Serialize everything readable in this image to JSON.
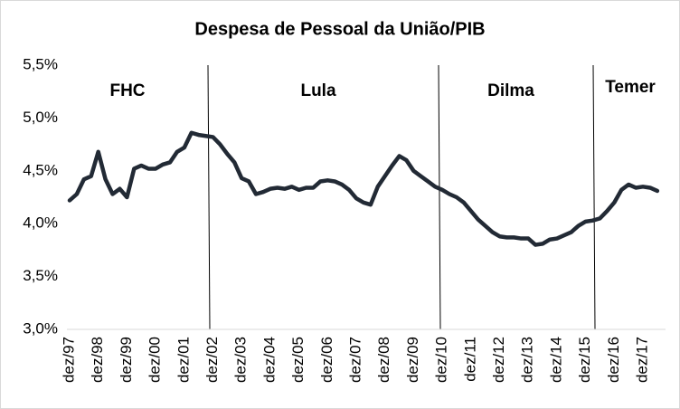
{
  "chart_data": {
    "type": "line",
    "title": "Despesa de Pessoal da União/PIB",
    "categories": [
      "dez/97",
      null,
      null,
      null,
      "dez/98",
      null,
      null,
      null,
      "dez/99",
      null,
      null,
      null,
      "dez/00",
      null,
      null,
      null,
      "dez/01",
      null,
      null,
      null,
      "dez/02",
      null,
      null,
      null,
      "dez/03",
      null,
      null,
      null,
      "dez/04",
      null,
      null,
      null,
      "dez/05",
      null,
      null,
      null,
      "dez/06",
      null,
      null,
      null,
      "dez/07",
      null,
      null,
      null,
      "dez/08",
      null,
      null,
      null,
      "dez/09",
      null,
      null,
      null,
      "dez/10",
      null,
      null,
      null,
      "dez/11",
      null,
      null,
      null,
      "dez/12",
      null,
      null,
      null,
      "dez/13",
      null,
      null,
      null,
      "dez/14",
      null,
      null,
      null,
      "dez/15",
      null,
      null,
      null,
      "dez/16",
      null,
      null,
      null,
      "dez/17",
      null,
      null
    ],
    "series": [
      {
        "name": "Despesa de Pessoal da União/PIB",
        "color": "#222a35",
        "values": [
          4.22,
          4.28,
          4.42,
          4.45,
          4.68,
          4.42,
          4.28,
          4.33,
          4.25,
          4.52,
          4.55,
          4.52,
          4.52,
          4.56,
          4.58,
          4.68,
          4.72,
          4.86,
          4.84,
          4.83,
          4.82,
          4.75,
          4.66,
          4.58,
          4.43,
          4.4,
          4.28,
          4.3,
          4.33,
          4.34,
          4.33,
          4.35,
          4.32,
          4.34,
          4.34,
          4.4,
          4.41,
          4.4,
          4.37,
          4.32,
          4.24,
          4.2,
          4.18,
          4.35,
          4.45,
          4.55,
          4.64,
          4.6,
          4.5,
          4.45,
          4.4,
          4.35,
          4.32,
          4.28,
          4.25,
          4.2,
          4.12,
          4.04,
          3.98,
          3.92,
          3.88,
          3.87,
          3.87,
          3.86,
          3.86,
          3.8,
          3.81,
          3.85,
          3.86,
          3.89,
          3.92,
          3.98,
          4.02,
          4.03,
          4.05,
          4.12,
          4.2,
          4.32,
          4.37,
          4.34,
          4.35,
          4.34,
          4.31
        ]
      }
    ],
    "ylim": [
      3.0,
      5.5
    ],
    "yticks": [
      {
        "value": 3.0,
        "label": "3,0%"
      },
      {
        "value": 3.5,
        "label": "3,5%"
      },
      {
        "value": 4.0,
        "label": "4,0%"
      },
      {
        "value": 4.5,
        "label": "4,5%"
      },
      {
        "value": 5.0,
        "label": "5,0%"
      },
      {
        "value": 5.5,
        "label": "5,5%"
      }
    ],
    "grid": false,
    "annotations": [
      "FHC",
      "Lula",
      "Dilma",
      "Temer"
    ]
  }
}
